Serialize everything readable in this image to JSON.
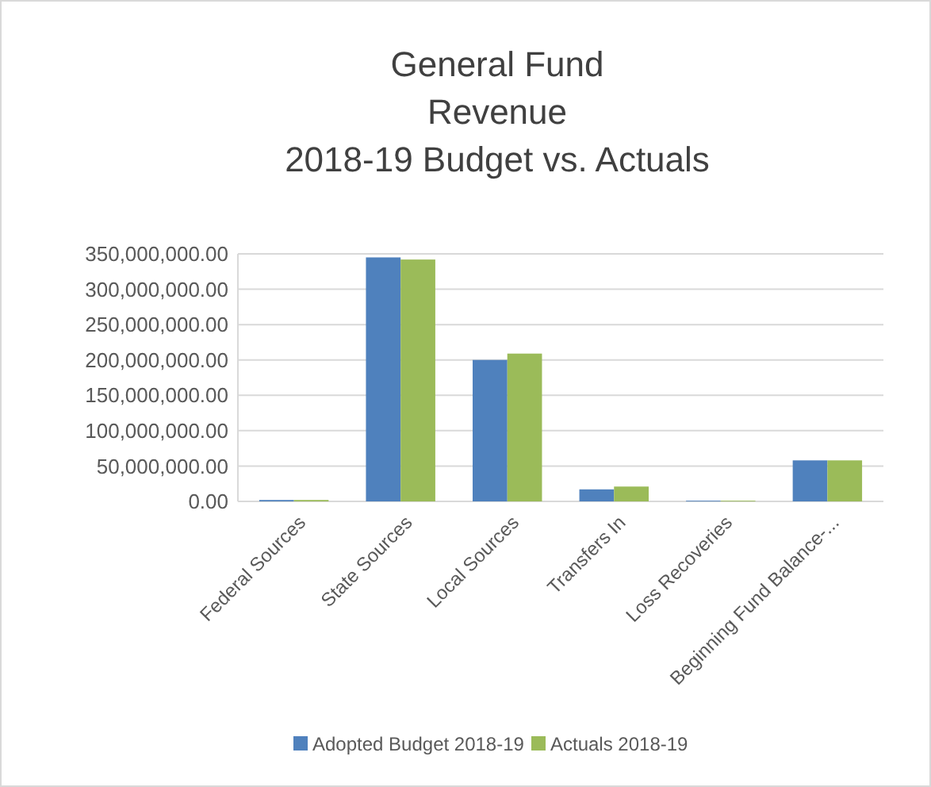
{
  "chart_data": {
    "type": "bar",
    "title": "General Fund\nRevenue\n2018-19 Budget vs. Actuals",
    "categories": [
      "Federal Sources",
      "State Sources",
      "Local Sources",
      "Transfers In",
      "Loss Recoveries",
      "Beginning Fund Balance-..."
    ],
    "series": [
      {
        "name": "Adopted Budget 2018-19",
        "color": "#4f81bd",
        "values": [
          2000000,
          345000000,
          200000000,
          17000000,
          1000000,
          58000000
        ]
      },
      {
        "name": "Actuals 2018-19",
        "color": "#9bbb59",
        "values": [
          2000000,
          342000000,
          209000000,
          21000000,
          1000000,
          58000000
        ]
      }
    ],
    "ylim": [
      0,
      350000000
    ],
    "yticks": [
      {
        "value": 0,
        "label": "0.00"
      },
      {
        "value": 50000000,
        "label": "50,000,000.00"
      },
      {
        "value": 100000000,
        "label": "100,000,000.00"
      },
      {
        "value": 150000000,
        "label": "150,000,000.00"
      },
      {
        "value": 200000000,
        "label": "200,000,000.00"
      },
      {
        "value": 250000000,
        "label": "250,000,000.00"
      },
      {
        "value": 300000000,
        "label": "300,000,000.00"
      },
      {
        "value": 350000000,
        "label": "350,000,000.00"
      }
    ],
    "grid": true,
    "legend": "bottom"
  }
}
